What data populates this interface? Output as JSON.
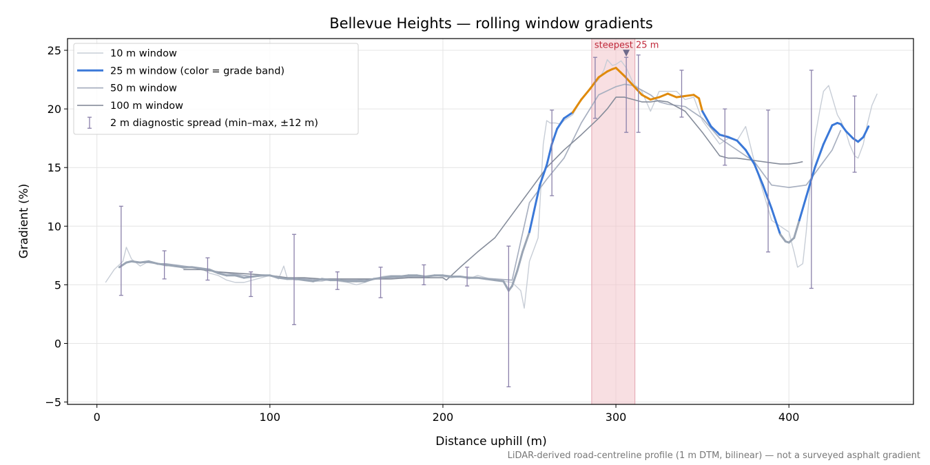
{
  "chart_data": {
    "type": "line",
    "title": "Bellevue Heights — rolling window gradients",
    "xlabel": "Distance uphill (m)",
    "ylabel": "Gradient (%)",
    "xlim": [
      -17,
      472
    ],
    "ylim": [
      -5.2,
      26
    ],
    "xticks": [
      0,
      100,
      200,
      300,
      400
    ],
    "yticks": [
      -5,
      0,
      5,
      10,
      15,
      20,
      25
    ],
    "xtick_labels": [
      "0",
      "100",
      "200",
      "300",
      "400"
    ],
    "ytick_labels": [
      "−5",
      "0",
      "5",
      "10",
      "15",
      "20",
      "25"
    ],
    "grid": true,
    "legend_position": "top-left",
    "footnote": "LiDAR-derived road-centreline profile (1 m DTM, bilinear) — not a surveyed asphalt gradient",
    "highlight": {
      "x_start": 286,
      "x_end": 311,
      "label": "steepest 25 m",
      "marker_x": 306,
      "marker_y": 24.7,
      "color": "#f2c4cb"
    },
    "series": [
      {
        "name": "10 m window",
        "color": "#c7cdd6",
        "width": 1.4,
        "x": [
          5,
          10,
          15,
          17,
          20,
          25,
          30,
          35,
          40,
          45,
          50,
          55,
          60,
          65,
          70,
          75,
          80,
          85,
          90,
          95,
          100,
          105,
          108,
          110,
          115,
          120,
          125,
          130,
          135,
          140,
          145,
          150,
          155,
          160,
          165,
          170,
          175,
          180,
          185,
          190,
          195,
          200,
          205,
          210,
          215,
          220,
          225,
          230,
          235,
          240,
          245,
          247,
          250,
          255,
          258,
          260,
          262,
          265,
          268,
          270,
          275,
          280,
          285,
          290,
          293,
          295,
          298,
          300,
          303,
          306,
          310,
          315,
          320,
          325,
          330,
          335,
          340,
          345,
          350,
          355,
          360,
          365,
          370,
          375,
          380,
          385,
          390,
          395,
          400,
          403,
          405,
          408,
          410,
          412,
          415,
          418,
          420,
          423,
          425,
          428,
          430,
          433,
          435,
          438,
          440,
          443,
          445,
          448,
          451
        ],
        "y": [
          5.2,
          6.3,
          7.0,
          8.2,
          7.2,
          6.6,
          7.0,
          6.8,
          6.6,
          6.7,
          6.4,
          6.5,
          6.4,
          6.0,
          5.8,
          5.4,
          5.2,
          5.2,
          5.4,
          5.6,
          5.8,
          5.5,
          6.6,
          5.6,
          5.4,
          5.5,
          5.3,
          5.3,
          5.5,
          5.3,
          5.2,
          5.0,
          5.2,
          5.5,
          5.7,
          5.8,
          5.8,
          5.6,
          5.8,
          5.6,
          5.8,
          5.7,
          5.6,
          5.7,
          5.5,
          5.8,
          5.6,
          5.4,
          5.3,
          5.2,
          4.5,
          3.0,
          7.0,
          9.0,
          17.0,
          19.0,
          18.8,
          18.8,
          18.7,
          19.0,
          19.5,
          20.8,
          21.8,
          22.5,
          23.3,
          24.2,
          23.7,
          23.8,
          24.1,
          23.5,
          22.2,
          21.5,
          19.8,
          21.5,
          21.5,
          21.5,
          20.8,
          21.0,
          19.0,
          18.0,
          17.0,
          17.5,
          17.3,
          18.5,
          15.5,
          13.0,
          10.5,
          10.0,
          9.5,
          7.8,
          6.5,
          6.8,
          9.5,
          13.0,
          17.5,
          20.0,
          21.5,
          22.0,
          21.0,
          19.5,
          19.0,
          18.0,
          17.0,
          16.0,
          15.8,
          17.0,
          18.5,
          20.3,
          21.3
        ]
      },
      {
        "name": "25 m window (color = grade band)",
        "color": "#3a78d8",
        "width": 3.0,
        "band_colors": {
          "low": "#9aa5b4",
          "mid": "#3a78d8",
          "high": "#e08a0b"
        },
        "band_thresholds": [
          10,
          20
        ],
        "x": [
          13,
          17,
          20,
          25,
          30,
          35,
          40,
          45,
          50,
          55,
          60,
          65,
          70,
          75,
          80,
          85,
          90,
          95,
          100,
          105,
          110,
          115,
          120,
          125,
          130,
          135,
          140,
          145,
          150,
          155,
          160,
          165,
          170,
          175,
          180,
          185,
          190,
          195,
          200,
          205,
          210,
          215,
          220,
          225,
          230,
          235,
          238,
          240,
          243,
          246,
          250,
          253,
          256,
          260,
          263,
          266,
          270,
          275,
          280,
          285,
          290,
          295,
          298,
          300,
          305,
          310,
          315,
          320,
          325,
          330,
          335,
          340,
          345,
          348,
          350,
          355,
          360,
          365,
          370,
          375,
          380,
          385,
          390,
          395,
          398,
          400,
          403,
          406,
          410,
          415,
          420,
          425,
          428,
          430,
          433,
          437,
          440,
          443,
          446
        ],
        "y": [
          6.5,
          6.9,
          7.0,
          6.9,
          7.0,
          6.8,
          6.7,
          6.6,
          6.5,
          6.5,
          6.4,
          6.3,
          6.0,
          5.8,
          5.8,
          5.6,
          5.7,
          5.8,
          5.8,
          5.6,
          5.5,
          5.5,
          5.4,
          5.3,
          5.5,
          5.4,
          5.4,
          5.3,
          5.3,
          5.3,
          5.5,
          5.6,
          5.7,
          5.7,
          5.8,
          5.8,
          5.7,
          5.8,
          5.8,
          5.7,
          5.7,
          5.6,
          5.6,
          5.5,
          5.4,
          5.3,
          4.5,
          4.9,
          6.2,
          7.8,
          9.5,
          11.5,
          13.5,
          15.2,
          17.0,
          18.3,
          19.2,
          19.7,
          20.8,
          21.7,
          22.7,
          23.2,
          23.4,
          23.5,
          22.8,
          22.0,
          21.2,
          20.8,
          21.0,
          21.3,
          21.0,
          21.1,
          21.2,
          20.9,
          19.8,
          18.5,
          17.8,
          17.6,
          17.3,
          16.5,
          15.3,
          13.5,
          11.5,
          9.3,
          8.7,
          8.6,
          9.0,
          10.5,
          12.5,
          15.0,
          17.0,
          18.6,
          18.8,
          18.7,
          18.1,
          17.5,
          17.2,
          17.6,
          18.5
        ]
      },
      {
        "name": "50 m window",
        "color": "#a8b0c0",
        "width": 1.7,
        "x": [
          25,
          30,
          35,
          40,
          50,
          60,
          70,
          80,
          90,
          100,
          110,
          120,
          130,
          140,
          150,
          160,
          170,
          180,
          190,
          200,
          210,
          220,
          230,
          240,
          250,
          260,
          270,
          280,
          290,
          300,
          305,
          310,
          315,
          320,
          325,
          330,
          340,
          350,
          360,
          370,
          380,
          390,
          400,
          410,
          415,
          420,
          425,
          430
        ],
        "y": [
          6.9,
          6.9,
          6.8,
          6.8,
          6.6,
          6.4,
          6.1,
          5.9,
          5.7,
          5.8,
          5.6,
          5.5,
          5.4,
          5.4,
          5.4,
          5.5,
          5.6,
          5.7,
          5.7,
          5.8,
          5.7,
          5.6,
          5.5,
          5.4,
          12.0,
          14.0,
          15.8,
          18.8,
          21.2,
          21.9,
          22.1,
          22.0,
          21.6,
          21.2,
          20.6,
          20.4,
          20.2,
          19.2,
          17.5,
          16.5,
          15.5,
          13.5,
          13.3,
          13.5,
          14.5,
          15.5,
          16.5,
          18.2
        ]
      },
      {
        "name": "100 m window",
        "color": "#858c9a",
        "width": 1.6,
        "x": [
          50,
          60,
          70,
          80,
          90,
          100,
          110,
          120,
          130,
          140,
          150,
          160,
          170,
          180,
          190,
          200,
          202,
          210,
          220,
          230,
          240,
          250,
          260,
          270,
          280,
          290,
          295,
          300,
          305,
          310,
          315,
          320,
          325,
          330,
          340,
          350,
          355,
          360,
          365,
          370,
          380,
          390,
          395,
          400,
          405,
          408
        ],
        "y": [
          6.3,
          6.3,
          6.1,
          6.0,
          5.9,
          5.8,
          5.6,
          5.6,
          5.5,
          5.5,
          5.5,
          5.5,
          5.5,
          5.6,
          5.6,
          5.6,
          5.4,
          6.5,
          7.8,
          9.0,
          11.0,
          13.0,
          15.0,
          16.5,
          17.8,
          19.2,
          20.0,
          21.0,
          21.0,
          20.8,
          20.6,
          20.6,
          20.7,
          20.6,
          19.8,
          18.0,
          17.0,
          16.0,
          15.8,
          15.8,
          15.6,
          15.4,
          15.3,
          15.3,
          15.4,
          15.5
        ]
      }
    ],
    "errorbars": {
      "name": "2 m diagnostic spread (min–max, ±12 m)",
      "color": "#8a80aa",
      "points": [
        {
          "x": 14,
          "lo": 4.1,
          "hi": 11.7
        },
        {
          "x": 39,
          "lo": 5.5,
          "hi": 7.9
        },
        {
          "x": 64,
          "lo": 5.4,
          "hi": 7.3
        },
        {
          "x": 89,
          "lo": 4.0,
          "hi": 6.1
        },
        {
          "x": 114,
          "lo": 1.6,
          "hi": 9.3
        },
        {
          "x": 139,
          "lo": 4.6,
          "hi": 6.1
        },
        {
          "x": 164,
          "lo": 3.9,
          "hi": 6.5
        },
        {
          "x": 189,
          "lo": 5.0,
          "hi": 6.7
        },
        {
          "x": 214,
          "lo": 4.9,
          "hi": 6.5
        },
        {
          "x": 238,
          "lo": -3.7,
          "hi": 8.3
        },
        {
          "x": 263,
          "lo": 12.6,
          "hi": 19.9
        },
        {
          "x": 288,
          "lo": 19.2,
          "hi": 24.4
        },
        {
          "x": 306,
          "lo": 18.0,
          "hi": 24.4
        },
        {
          "x": 313,
          "lo": 18.0,
          "hi": 24.6
        },
        {
          "x": 338,
          "lo": 19.3,
          "hi": 23.3
        },
        {
          "x": 363,
          "lo": 15.2,
          "hi": 20.0
        },
        {
          "x": 388,
          "lo": 7.8,
          "hi": 19.9
        },
        {
          "x": 413,
          "lo": 4.7,
          "hi": 23.3
        },
        {
          "x": 438,
          "lo": 14.6,
          "hi": 21.1
        }
      ]
    }
  }
}
